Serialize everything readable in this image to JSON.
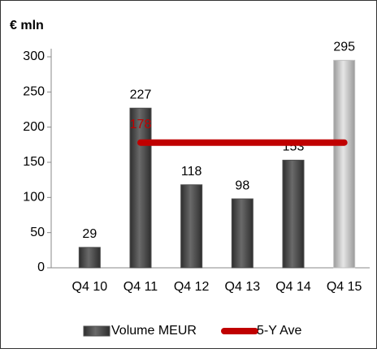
{
  "chart_data": {
    "type": "bar",
    "y_axis_label": "€ mln",
    "categories": [
      "Q4 10",
      "Q4 11",
      "Q4 12",
      "Q4 13",
      "Q4 14",
      "Q4 15"
    ],
    "series": [
      {
        "name": "Volume MEUR",
        "type": "bar",
        "colors": [
          "#4d4d4d",
          "#4d4d4d",
          "#4d4d4d",
          "#4d4d4d",
          "#4d4d4d",
          "#bfbfbf"
        ],
        "values": [
          29,
          227,
          118,
          98,
          153,
          295
        ]
      },
      {
        "name": "5-Y Ave",
        "type": "line",
        "color": "#c00000",
        "values": [
          null,
          178,
          178,
          178,
          178,
          178
        ]
      }
    ],
    "ylim": [
      0,
      300
    ],
    "yticks": [
      0,
      50,
      100,
      150,
      200,
      250,
      300
    ],
    "legend": "bottom"
  }
}
